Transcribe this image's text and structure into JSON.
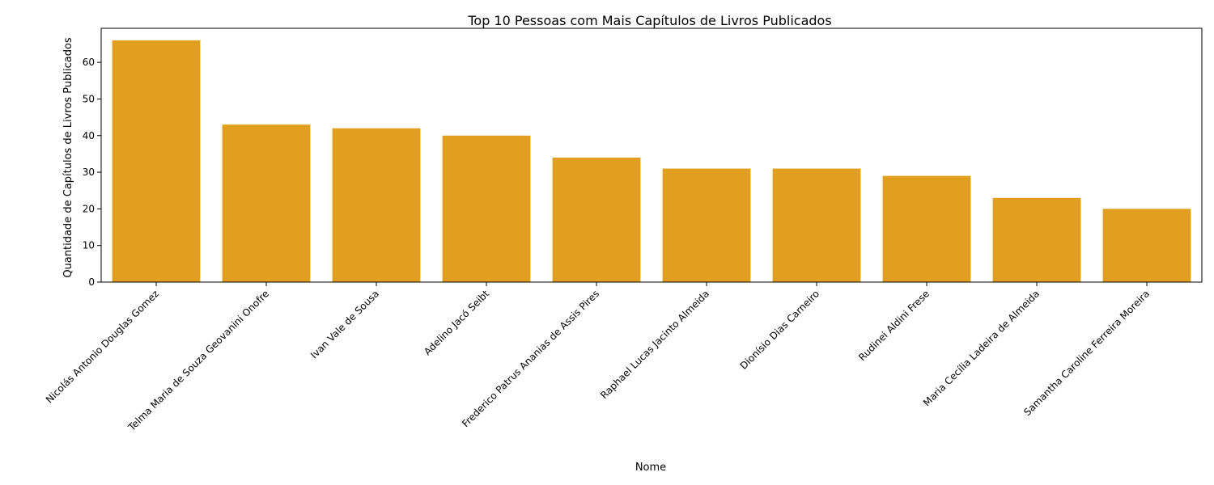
{
  "chart_data": {
    "type": "bar",
    "title": "Top 10 Pessoas com Mais Capítulos de Livros Publicados",
    "xlabel": "Nome",
    "ylabel": "Quantidade de Capítulos de Livros Publicados",
    "categories": [
      "Nicolás Antonio Douglas Gomez",
      "Telma Maria de Souza Geovanini Onofre",
      "Ivan Vale de Sousa",
      "Adelino Jacó Seibt",
      "Frederico Patrus Ananias de Assis Pires",
      "Raphael Lucas Jacinto Almeida",
      "Dionísio Dias Carneiro",
      "Rudinei Aldini Frese",
      "Maria Cecília Ladeira de Almeida",
      "Samantha Caroline Ferreira Moreira"
    ],
    "values": [
      66,
      43,
      42,
      40,
      34,
      31,
      31,
      29,
      23,
      20
    ],
    "ylim": [
      0,
      69.3
    ],
    "yticks": [
      0,
      10,
      20,
      30,
      40,
      50,
      60
    ],
    "bar_color": "#e29e1f",
    "grid": false,
    "legend": "none"
  }
}
